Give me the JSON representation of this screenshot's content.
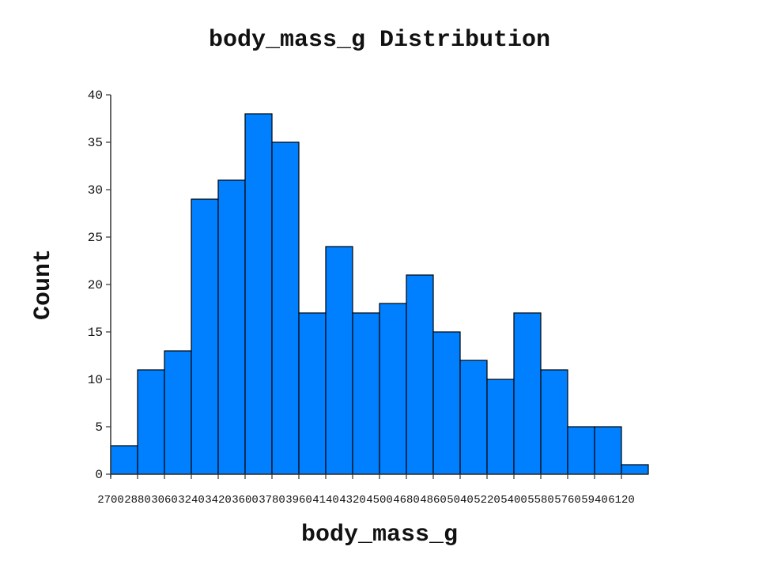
{
  "chart_data": {
    "type": "bar",
    "title": "body_mass_g Distribution",
    "xlabel": "body_mass_g",
    "ylabel": "Count",
    "ylim": [
      0,
      40
    ],
    "yticks": [
      0,
      5,
      10,
      15,
      20,
      25,
      30,
      35,
      40
    ],
    "bin_start": 2700,
    "bin_width": 180,
    "xtick_labels": [
      "2700",
      "2880",
      "3060",
      "3240",
      "3420",
      "3600",
      "3780",
      "3960",
      "4140",
      "4320",
      "4500",
      "4680",
      "4860",
      "5040",
      "5220",
      "5400",
      "5580",
      "5760",
      "5940",
      "6120"
    ],
    "values": [
      3,
      11,
      13,
      29,
      31,
      38,
      35,
      17,
      24,
      17,
      18,
      21,
      15,
      12,
      10,
      17,
      11,
      5,
      5,
      1
    ],
    "bar_color": "#0080FF",
    "grid": false
  }
}
